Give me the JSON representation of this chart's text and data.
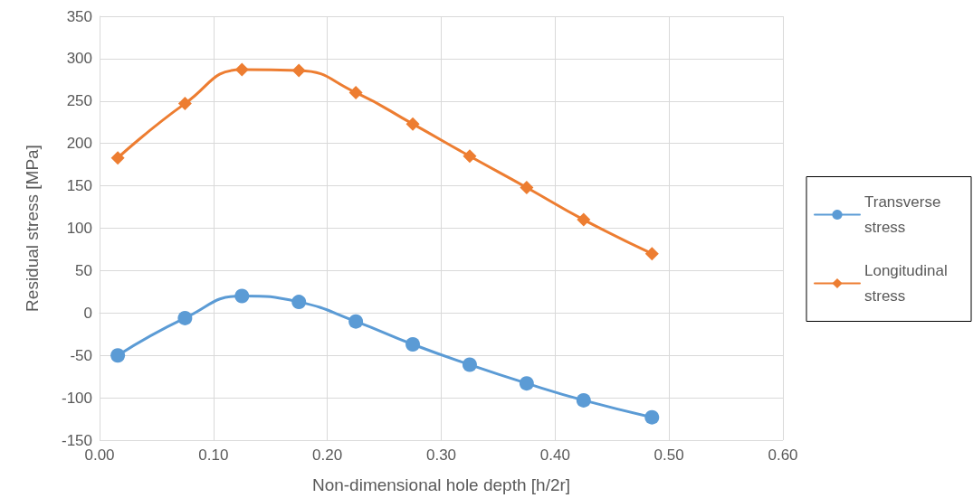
{
  "chart_data": {
    "type": "line",
    "xlabel": "Non-dimensional hole depth [h/2r]",
    "ylabel": "Residual stress [MPa]",
    "x": [
      0.016,
      0.075,
      0.125,
      0.175,
      0.225,
      0.275,
      0.325,
      0.375,
      0.425,
      0.485
    ],
    "series": [
      {
        "name": "Transverse stress",
        "color": "#5b9bd5",
        "marker": "circle",
        "values": [
          -50,
          -6,
          20,
          13,
          -10,
          -37,
          -61,
          -83,
          -103,
          -123
        ]
      },
      {
        "name": "Longitudinal stress",
        "color": "#ed7d31",
        "marker": "diamond",
        "values": [
          183,
          247,
          287,
          286,
          260,
          223,
          185,
          148,
          110,
          70
        ]
      }
    ],
    "xlim": [
      0,
      0.6
    ],
    "xticks": [
      {
        "value": 0,
        "label": "0.00"
      },
      {
        "value": 0.1,
        "label": "0.10"
      },
      {
        "value": 0.2,
        "label": "0.20"
      },
      {
        "value": 0.3,
        "label": "0.30"
      },
      {
        "value": 0.4,
        "label": "0.40"
      },
      {
        "value": 0.5,
        "label": "0.50"
      },
      {
        "value": 0.6,
        "label": "0.60"
      }
    ],
    "ylim": [
      -150,
      350
    ],
    "yticks": [
      -150,
      -100,
      -50,
      0,
      50,
      100,
      150,
      200,
      250,
      300,
      350
    ],
    "grid": true,
    "legend": "right",
    "line_style": "solid"
  }
}
